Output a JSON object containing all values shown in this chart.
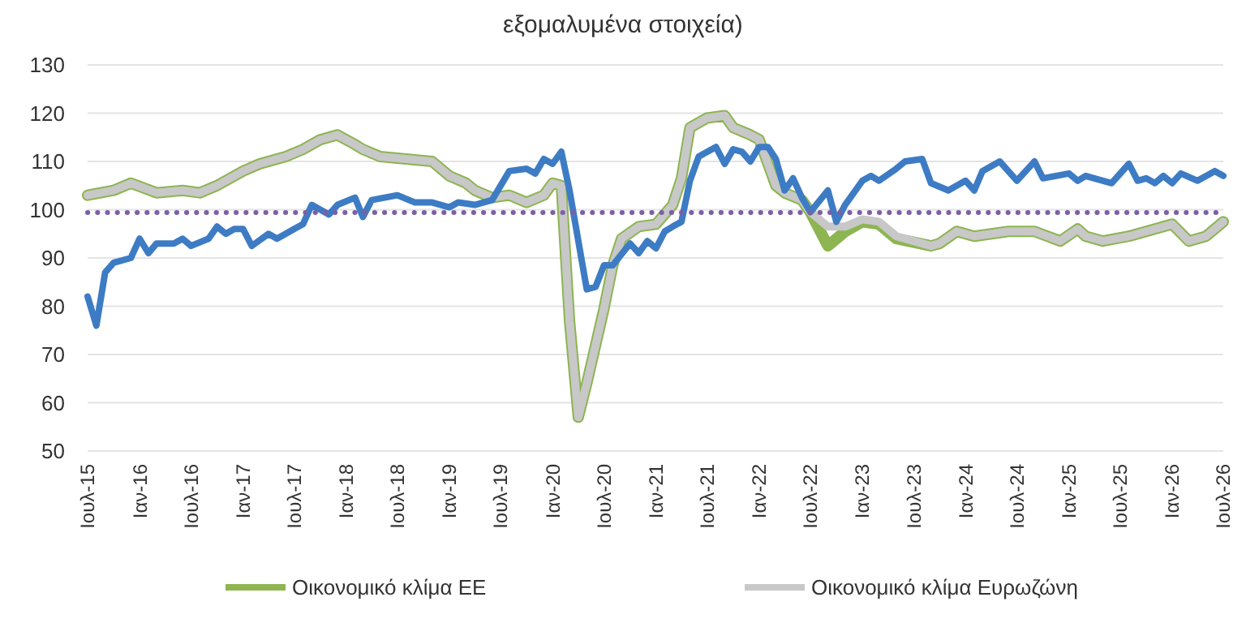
{
  "chart_data": {
    "type": "line",
    "title": "εξομαλυμένα στοιχεία)",
    "series": [
      {
        "name": "Οικονομικό κλίμα ΕΕ",
        "color": "#8db550",
        "x": [
          "2015-07",
          "2015-10",
          "2015-12",
          "2016-03",
          "2016-06",
          "2016-08",
          "2016-10",
          "2017-01",
          "2017-03",
          "2017-06",
          "2017-08",
          "2017-10",
          "2017-12",
          "2018-02",
          "2018-03",
          "2018-05",
          "2018-08",
          "2018-11",
          "2019-01",
          "2019-03",
          "2019-04",
          "2019-06",
          "2019-08",
          "2019-10",
          "2019-12",
          "2020-01",
          "2020-02",
          "2020-03",
          "2020-04",
          "2020-05",
          "2020-07",
          "2020-08",
          "2020-09",
          "2020-11",
          "2021-01",
          "2021-03",
          "2021-04",
          "2021-05",
          "2021-07",
          "2021-09",
          "2021-10",
          "2021-12",
          "2022-01",
          "2022-03",
          "2022-04",
          "2022-06",
          "2022-07",
          "2022-09",
          "2022-11",
          "2023-01",
          "2023-03",
          "2023-05",
          "2023-09",
          "2023-10",
          "2023-12",
          "2024-02",
          "2024-06",
          "2024-09",
          "2024-12",
          "2025-02",
          "2025-03",
          "2025-05",
          "2025-08",
          "2025-11",
          "2026-01",
          "2026-03",
          "2026-05",
          "2026-07"
        ],
        "values": [
          103,
          104,
          105.5,
          103.5,
          104,
          103.5,
          105,
          108,
          109.5,
          111,
          112.5,
          114.5,
          115.5,
          113.5,
          112.5,
          111,
          110.5,
          110,
          107,
          105.5,
          104,
          102.5,
          103,
          101.5,
          103,
          105.5,
          105,
          77,
          57,
          64,
          79.5,
          88.5,
          94,
          96.5,
          97,
          101,
          106.5,
          117,
          119,
          119.5,
          117,
          115.5,
          114.5,
          105,
          103.5,
          102,
          99.5,
          92.5,
          95.5,
          97.5,
          97,
          94,
          92.5,
          93,
          95.5,
          94.5,
          95.5,
          95.5,
          93.5,
          96,
          94.5,
          93.5,
          94.5,
          96,
          97,
          93.5,
          94.5,
          97.5
        ]
      },
      {
        "name": "Οικονομικό κλίμα Ευρωζώνη",
        "color": "#c8c8c8",
        "x": [
          "2015-07",
          "2015-10",
          "2015-12",
          "2016-03",
          "2016-06",
          "2016-08",
          "2016-10",
          "2017-01",
          "2017-03",
          "2017-06",
          "2017-08",
          "2017-10",
          "2017-12",
          "2018-02",
          "2018-03",
          "2018-05",
          "2018-08",
          "2018-11",
          "2019-01",
          "2019-03",
          "2019-04",
          "2019-06",
          "2019-08",
          "2019-10",
          "2019-12",
          "2020-01",
          "2020-02",
          "2020-03",
          "2020-04",
          "2020-05",
          "2020-07",
          "2020-08",
          "2020-09",
          "2020-11",
          "2021-01",
          "2021-03",
          "2021-04",
          "2021-05",
          "2021-07",
          "2021-09",
          "2021-10",
          "2021-12",
          "2022-01",
          "2022-03",
          "2022-04",
          "2022-06",
          "2022-07",
          "2022-09",
          "2022-11",
          "2023-01",
          "2023-03",
          "2023-05",
          "2023-09",
          "2023-10",
          "2023-12",
          "2024-02",
          "2024-06",
          "2024-09",
          "2024-12",
          "2025-02",
          "2025-03",
          "2025-05",
          "2025-08",
          "2025-11",
          "2026-01",
          "2026-03",
          "2026-05",
          "2026-07"
        ],
        "values": [
          103,
          104,
          105.5,
          103.5,
          104,
          103.5,
          105,
          108,
          109.5,
          111,
          112.5,
          114.5,
          115.5,
          113.5,
          112.5,
          111,
          110.5,
          110,
          107,
          105.5,
          104,
          102.5,
          103,
          101.5,
          103,
          105.5,
          105,
          77,
          57,
          64,
          79.5,
          88.5,
          94,
          96.5,
          97,
          101,
          106.5,
          117,
          119,
          119.5,
          117,
          115.5,
          114.5,
          105,
          103.5,
          102,
          99.5,
          96.5,
          96.5,
          98,
          97.5,
          94.5,
          92.5,
          93,
          95.5,
          94.5,
          95.5,
          95.5,
          93.5,
          96,
          94.5,
          93.5,
          94.5,
          96,
          97,
          93.5,
          94.5,
          97.5
        ]
      },
      {
        "color": "#3d7cc4",
        "x": [
          "2015-07",
          "2015-08",
          "2015-09",
          "2015-10",
          "2015-12",
          "2016-01",
          "2016-02",
          "2016-03",
          "2016-05",
          "2016-06",
          "2016-07",
          "2016-09",
          "2016-10",
          "2016-11",
          "2016-12",
          "2017-01",
          "2017-02",
          "2017-04",
          "2017-05",
          "2017-07",
          "2017-08",
          "2017-09",
          "2017-11",
          "2017-12",
          "2018-02",
          "2018-03",
          "2018-04",
          "2018-07",
          "2018-09",
          "2018-11",
          "2019-01",
          "2019-02",
          "2019-04",
          "2019-06",
          "2019-08",
          "2019-10",
          "2019-11",
          "2019-12",
          "2020-01",
          "2020-02",
          "2020-03",
          "2020-05",
          "2020-06",
          "2020-07",
          "2020-08",
          "2020-10",
          "2020-11",
          "2020-12",
          "2021-01",
          "2021-02",
          "2021-03",
          "2021-04",
          "2021-05",
          "2021-06",
          "2021-08",
          "2021-09",
          "2021-10",
          "2021-11",
          "2021-12",
          "2022-01",
          "2022-02",
          "2022-03",
          "2022-04",
          "2022-05",
          "2022-06",
          "2022-07",
          "2022-09",
          "2022-10",
          "2022-11",
          "2023-01",
          "2023-02",
          "2023-03",
          "2023-05",
          "2023-06",
          "2023-08",
          "2023-09",
          "2023-11",
          "2024-01",
          "2024-02",
          "2024-03",
          "2024-05",
          "2024-07",
          "2024-09",
          "2024-10",
          "2025-01",
          "2025-02",
          "2025-03",
          "2025-06",
          "2025-08",
          "2025-09",
          "2025-10",
          "2025-11",
          "2025-12",
          "2026-01",
          "2026-02",
          "2026-04",
          "2026-06",
          "2026-07"
        ],
        "values": [
          82,
          76,
          87,
          89,
          90,
          94,
          91,
          93,
          93,
          94,
          92.5,
          94,
          96.5,
          95,
          96,
          96,
          92.5,
          95,
          94,
          96,
          97,
          101,
          99,
          101,
          102.5,
          98.5,
          102,
          103,
          101.5,
          101.5,
          100.5,
          101.5,
          101,
          102,
          108,
          108.5,
          107.5,
          110.5,
          109.5,
          112,
          104,
          83.5,
          84,
          88.5,
          88.5,
          93,
          91,
          93.5,
          92,
          95.5,
          96.5,
          97.5,
          106,
          111,
          113,
          109.5,
          112.5,
          112,
          110,
          113,
          113,
          110.5,
          104,
          106.5,
          102.5,
          99.5,
          104,
          97.5,
          101,
          106,
          107,
          106,
          108.5,
          110,
          110.5,
          105.5,
          104,
          106,
          104,
          108,
          110,
          106,
          110,
          106.5,
          107.5,
          106,
          107,
          105.5,
          109.5,
          106,
          106.5,
          105.5,
          107,
          105.5,
          107.5,
          106,
          108,
          107
        ]
      }
    ],
    "xlim": [
      "2015-07",
      "2026-07"
    ],
    "xticks": [
      {
        "value": "2015-07",
        "label": "Ιουλ-15"
      },
      {
        "value": "2016-01",
        "label": "Ιαν-16"
      },
      {
        "value": "2016-07",
        "label": "Ιουλ-16"
      },
      {
        "value": "2017-01",
        "label": "Ιαν-17"
      },
      {
        "value": "2017-07",
        "label": "Ιουλ-17"
      },
      {
        "value": "2018-01",
        "label": "Ιαν-18"
      },
      {
        "value": "2018-07",
        "label": "Ιουλ-18"
      },
      {
        "value": "2019-01",
        "label": "Ιαν-19"
      },
      {
        "value": "2019-07",
        "label": "Ιουλ-19"
      },
      {
        "value": "2020-01",
        "label": "Ιαν-20"
      },
      {
        "value": "2020-07",
        "label": "Ιουλ-20"
      },
      {
        "value": "2021-01",
        "label": "Ιαν-21"
      },
      {
        "value": "2021-07",
        "label": "Ιουλ-21"
      },
      {
        "value": "2022-01",
        "label": "Ιαν-22"
      },
      {
        "value": "2022-07",
        "label": "Ιουλ-22"
      },
      {
        "value": "2023-01",
        "label": "Ιαν-23"
      },
      {
        "value": "2023-07",
        "label": "Ιουλ-23"
      },
      {
        "value": "2024-01",
        "label": "Ιαν-24"
      },
      {
        "value": "2024-07",
        "label": "Ιουλ-24"
      },
      {
        "value": "2025-01",
        "label": "Ιαν-25"
      },
      {
        "value": "2025-07",
        "label": "Ιουλ-25"
      },
      {
        "value": "2026-01",
        "label": "Ιαν-26"
      },
      {
        "value": "2026-07",
        "label": "Ιουλ-26"
      }
    ],
    "ylim": [
      50,
      130
    ],
    "yticks": [
      50,
      60,
      70,
      80,
      90,
      100,
      110,
      120,
      130
    ],
    "ref_lines": [
      {
        "axis": "y",
        "value": 99.4,
        "color": "#7d5fa6",
        "line_style": "dotted"
      }
    ],
    "grid": "y",
    "legend": "bottom",
    "line_style": "solid",
    "marker": "none"
  }
}
